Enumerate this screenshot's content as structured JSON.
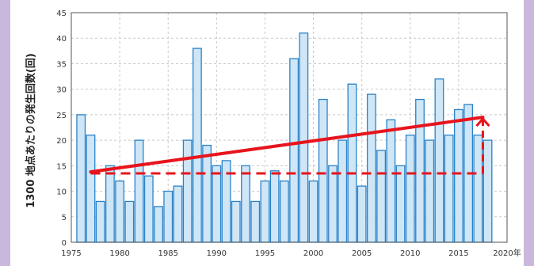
{
  "colors": {
    "frame": "#c9b7dc",
    "bar_fill": "#cfe6f7",
    "bar_stroke": "#2a82c8",
    "trend": "#e8141c",
    "grid": "#c8c8c8"
  },
  "chart_data": {
    "type": "bar",
    "title": "",
    "xlabel": "",
    "ylabel": "1300 地点あたりの発生回数(回)",
    "x_unit": "年",
    "xlim": [
      1975,
      2020
    ],
    "ylim": [
      0,
      45
    ],
    "x_ticks": [
      1975,
      1980,
      1985,
      1990,
      1995,
      2000,
      2005,
      2010,
      2015,
      2020
    ],
    "y_ticks": [
      0,
      5,
      10,
      15,
      20,
      25,
      30,
      35,
      40,
      45
    ],
    "grid": true,
    "legend": "none",
    "categories": [
      1976,
      1977,
      1978,
      1979,
      1980,
      1981,
      1982,
      1983,
      1984,
      1985,
      1986,
      1987,
      1988,
      1989,
      1990,
      1991,
      1992,
      1993,
      1994,
      1995,
      1996,
      1997,
      1998,
      1999,
      2000,
      2001,
      2002,
      2003,
      2004,
      2005,
      2006,
      2007,
      2008,
      2009,
      2010,
      2011,
      2012,
      2013,
      2014,
      2015,
      2016,
      2017,
      2018
    ],
    "values": [
      25,
      21,
      8,
      15,
      12,
      8,
      20,
      13,
      7,
      10,
      11,
      20,
      38,
      19,
      15,
      16,
      8,
      15,
      8,
      12,
      14,
      12,
      36,
      41,
      12,
      28,
      15,
      20,
      31,
      11,
      29,
      18,
      24,
      15,
      21,
      28,
      20,
      32,
      21,
      26,
      27,
      21,
      20
    ],
    "trend_line": {
      "x": [
        1977,
        2017.5
      ],
      "y": [
        13.8,
        24.5
      ]
    },
    "baseline_line": {
      "x": [
        1977,
        2017.5
      ],
      "y": [
        13.5,
        13.5
      ]
    },
    "increase_arrow": {
      "x": 2017.5,
      "y_from": 13.5,
      "y_to": 24.5
    }
  }
}
